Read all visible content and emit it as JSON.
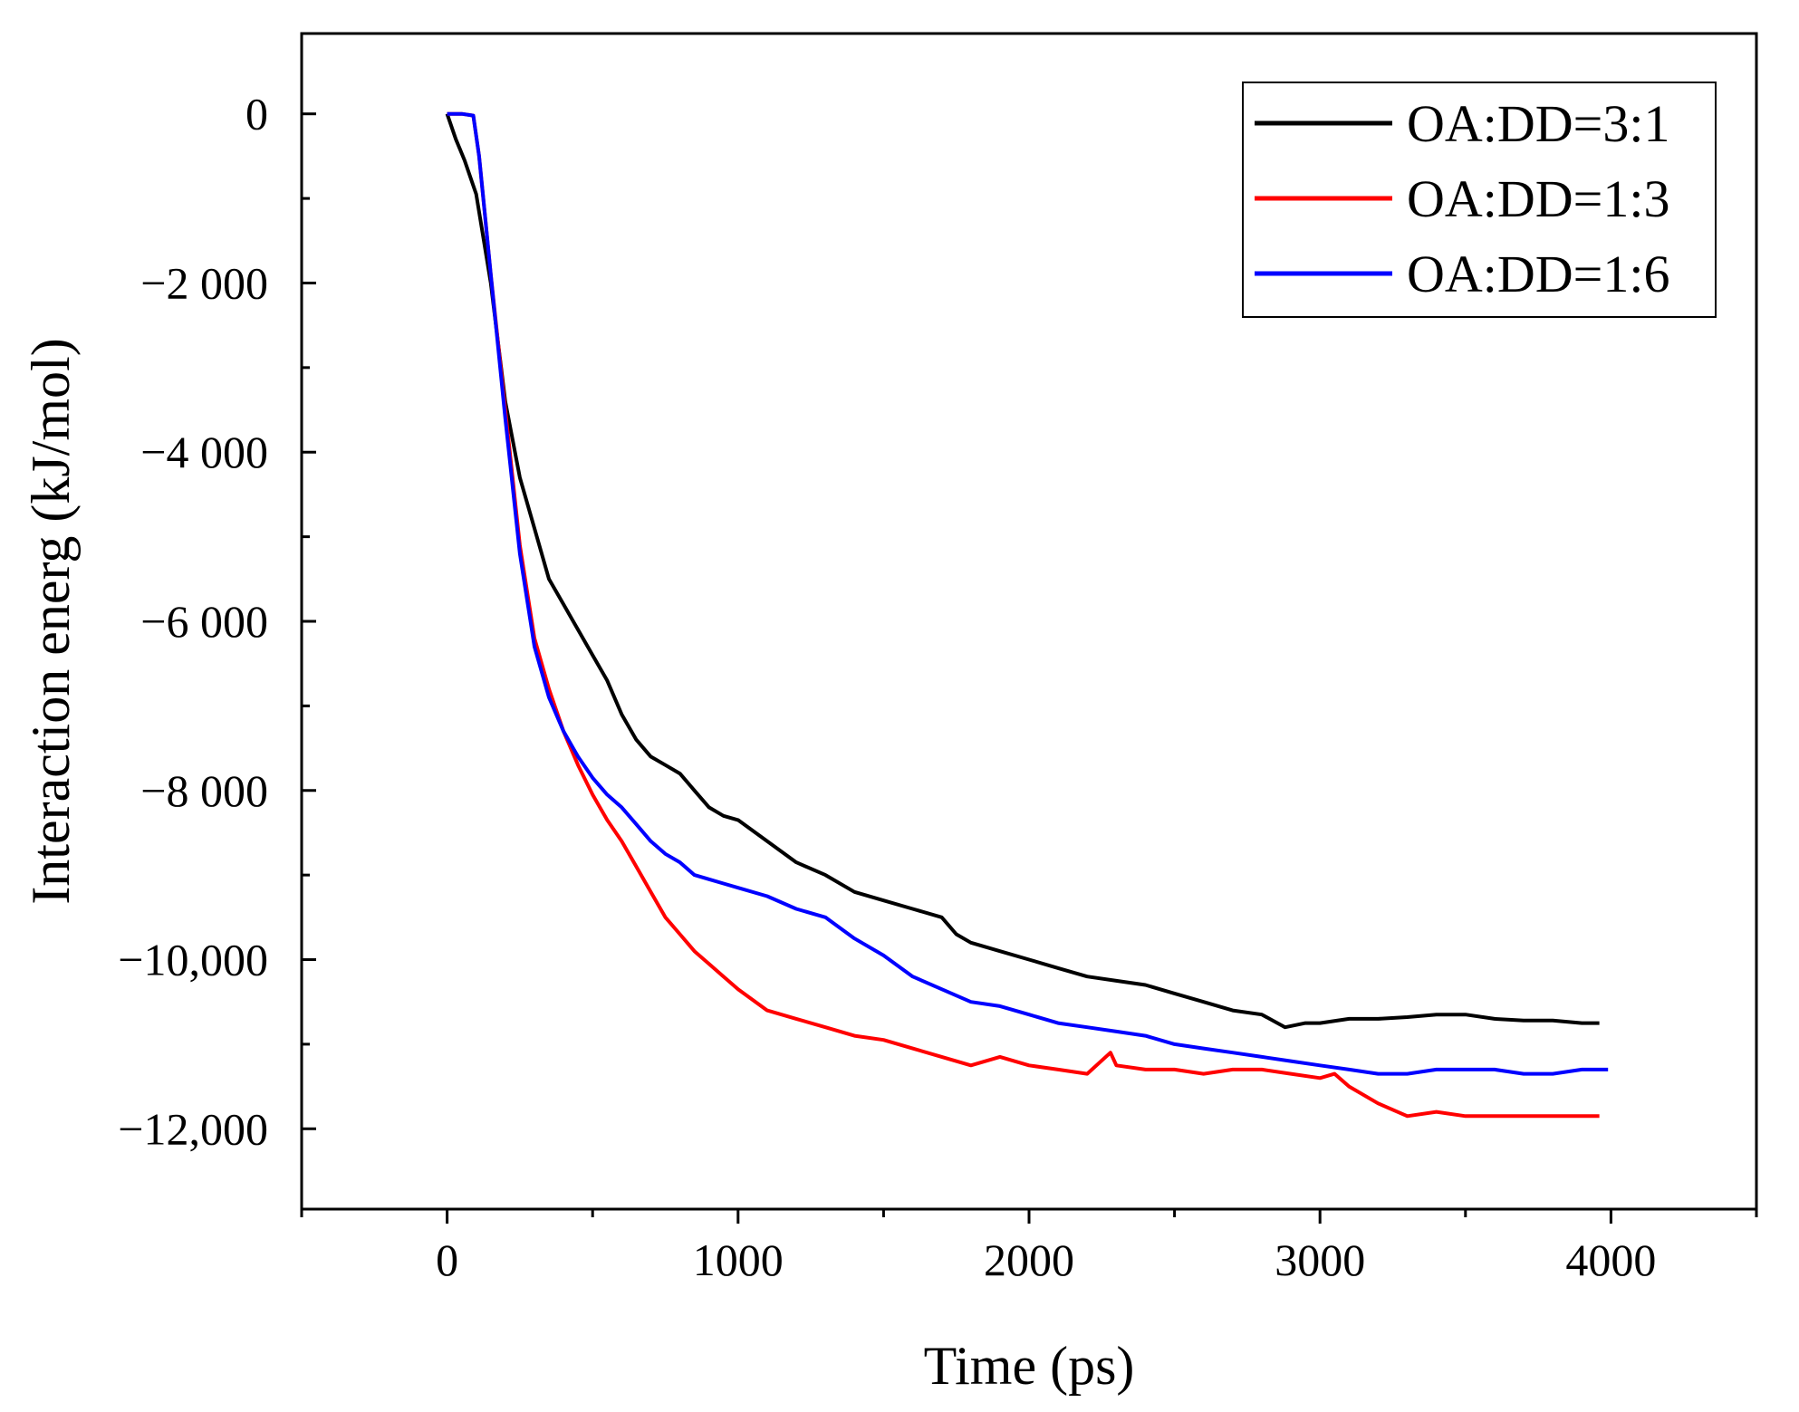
{
  "chart_data": {
    "type": "line",
    "title": "",
    "xlabel": "Time (ps)",
    "ylabel": "Interaction energ (kJ/mol)",
    "xlim": [
      -500,
      4500
    ],
    "ylim": [
      -12950,
      950
    ],
    "xticks": [
      0,
      1000,
      2000,
      3000,
      4000
    ],
    "xtick_labels": [
      "0",
      "1000",
      "2000",
      "3000",
      "4000"
    ],
    "yticks": [
      0,
      -2000,
      -4000,
      -6000,
      -8000,
      -10000,
      -12000
    ],
    "ytick_labels": [
      "0",
      "−2 000",
      "−4 000",
      "−6 000",
      "−8 000",
      "−10,000",
      "−12,000"
    ],
    "grid": false,
    "legend_position": "top-right",
    "series": [
      {
        "name": "OA:DD=3:1",
        "color": "#000000",
        "x": [
          0,
          30,
          60,
          100,
          150,
          200,
          250,
          300,
          350,
          400,
          450,
          500,
          550,
          600,
          650,
          700,
          750,
          800,
          850,
          900,
          950,
          1000,
          1100,
          1200,
          1300,
          1400,
          1500,
          1600,
          1700,
          1750,
          1800,
          1900,
          2000,
          2100,
          2200,
          2300,
          2400,
          2500,
          2600,
          2700,
          2800,
          2880,
          2950,
          3000,
          3100,
          3200,
          3300,
          3400,
          3500,
          3600,
          3700,
          3800,
          3900,
          3960
        ],
        "y": [
          0,
          -300,
          -550,
          -950,
          -2000,
          -3400,
          -4300,
          -4900,
          -5500,
          -5800,
          -6100,
          -6400,
          -6700,
          -7100,
          -7400,
          -7600,
          -7700,
          -7800,
          -8000,
          -8200,
          -8300,
          -8350,
          -8600,
          -8850,
          -9000,
          -9200,
          -9300,
          -9400,
          -9500,
          -9700,
          -9800,
          -9900,
          -10000,
          -10100,
          -10200,
          -10250,
          -10300,
          -10400,
          -10500,
          -10600,
          -10650,
          -10800,
          -10750,
          -10750,
          -10700,
          -10700,
          -10680,
          -10650,
          -10650,
          -10700,
          -10720,
          -10720,
          -10750,
          -10750
        ]
      },
      {
        "name": "OA:DD=1:3",
        "color": "#ff0000",
        "x": [
          0,
          50,
          90,
          110,
          130,
          150,
          200,
          250,
          300,
          350,
          400,
          450,
          500,
          550,
          600,
          650,
          700,
          750,
          800,
          850,
          900,
          950,
          1000,
          1100,
          1200,
          1300,
          1400,
          1500,
          1600,
          1700,
          1800,
          1900,
          2000,
          2100,
          2200,
          2280,
          2300,
          2400,
          2500,
          2600,
          2700,
          2800,
          2900,
          3000,
          3050,
          3100,
          3200,
          3300,
          3400,
          3500,
          3600,
          3700,
          3800,
          3900,
          3960
        ],
        "y": [
          0,
          0,
          -20,
          -500,
          -1200,
          -1900,
          -3500,
          -5100,
          -6200,
          -6800,
          -7300,
          -7700,
          -8050,
          -8350,
          -8600,
          -8900,
          -9200,
          -9500,
          -9700,
          -9900,
          -10050,
          -10200,
          -10350,
          -10600,
          -10700,
          -10800,
          -10900,
          -10950,
          -11050,
          -11150,
          -11250,
          -11150,
          -11250,
          -11300,
          -11350,
          -11100,
          -11250,
          -11300,
          -11300,
          -11350,
          -11300,
          -11300,
          -11350,
          -11400,
          -11350,
          -11500,
          -11700,
          -11850,
          -11800,
          -11850,
          -11850,
          -11850,
          -11850,
          -11850,
          -11850
        ]
      },
      {
        "name": "OA:DD=1:6",
        "color": "#0000ff",
        "x": [
          0,
          50,
          90,
          110,
          130,
          150,
          200,
          250,
          300,
          350,
          400,
          450,
          500,
          550,
          600,
          650,
          700,
          750,
          800,
          850,
          900,
          950,
          1000,
          1100,
          1200,
          1300,
          1400,
          1500,
          1600,
          1700,
          1800,
          1900,
          2000,
          2100,
          2200,
          2300,
          2400,
          2500,
          2600,
          2700,
          2800,
          2900,
          3000,
          3100,
          3200,
          3300,
          3400,
          3500,
          3600,
          3700,
          3800,
          3900,
          3990
        ],
        "y": [
          0,
          0,
          -20,
          -500,
          -1200,
          -1900,
          -3600,
          -5200,
          -6300,
          -6900,
          -7300,
          -7600,
          -7850,
          -8050,
          -8200,
          -8400,
          -8600,
          -8750,
          -8850,
          -9000,
          -9050,
          -9100,
          -9150,
          -9250,
          -9400,
          -9500,
          -9750,
          -9950,
          -10200,
          -10350,
          -10500,
          -10550,
          -10650,
          -10750,
          -10800,
          -10850,
          -10900,
          -11000,
          -11050,
          -11100,
          -11150,
          -11200,
          -11250,
          -11300,
          -11350,
          -11350,
          -11300,
          -11300,
          -11300,
          -11350,
          -11350,
          -11300,
          -11300
        ]
      }
    ]
  }
}
